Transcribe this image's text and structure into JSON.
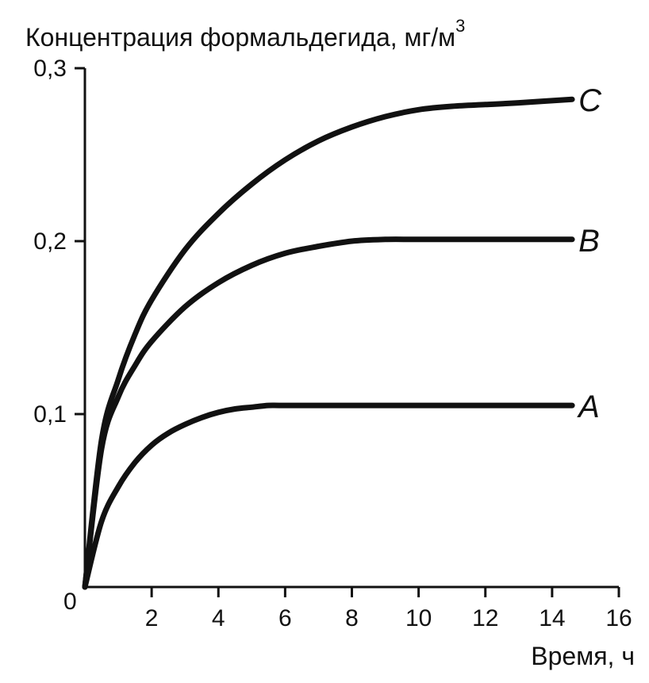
{
  "chart_data": {
    "type": "line",
    "ylabel": "Концентрация формальдегида, мг/м",
    "ylabel_superscript": "3",
    "xlabel": "Время, ч",
    "origin_label": "0",
    "xlim": [
      0,
      16
    ],
    "ylim": [
      0,
      0.3
    ],
    "x_ticks": [
      2,
      4,
      6,
      8,
      10,
      12,
      14,
      16
    ],
    "x_tick_labels": [
      "2",
      "4",
      "6",
      "8",
      "10",
      "12",
      "14",
      "16"
    ],
    "y_ticks": [
      0.1,
      0.2,
      0.3
    ],
    "y_tick_labels": [
      "0,1",
      "0,2",
      "0,3"
    ],
    "grid": false,
    "series": [
      {
        "name": "A",
        "x": [
          0,
          0.5,
          1,
          1.5,
          2,
          2.5,
          3,
          3.5,
          4,
          4.5,
          5,
          5.5,
          6,
          8,
          10,
          12,
          14.6
        ],
        "y": [
          0,
          0.038,
          0.058,
          0.072,
          0.082,
          0.089,
          0.094,
          0.098,
          0.101,
          0.103,
          0.104,
          0.105,
          0.105,
          0.105,
          0.105,
          0.105,
          0.105
        ]
      },
      {
        "name": "B",
        "x": [
          0,
          0.5,
          1,
          1.5,
          2,
          3,
          4,
          5,
          6,
          7,
          8,
          9,
          10,
          12,
          14.6
        ],
        "y": [
          0,
          0.08,
          0.11,
          0.128,
          0.142,
          0.162,
          0.176,
          0.186,
          0.193,
          0.197,
          0.2,
          0.201,
          0.201,
          0.201,
          0.201
        ]
      },
      {
        "name": "C",
        "x": [
          0,
          0.5,
          1,
          1.5,
          2,
          3,
          4,
          5,
          6,
          7,
          8,
          9,
          10,
          11,
          12,
          13,
          14.6
        ],
        "y": [
          0,
          0.085,
          0.12,
          0.146,
          0.166,
          0.195,
          0.216,
          0.233,
          0.247,
          0.258,
          0.266,
          0.272,
          0.276,
          0.278,
          0.279,
          0.28,
          0.282
        ]
      }
    ]
  }
}
